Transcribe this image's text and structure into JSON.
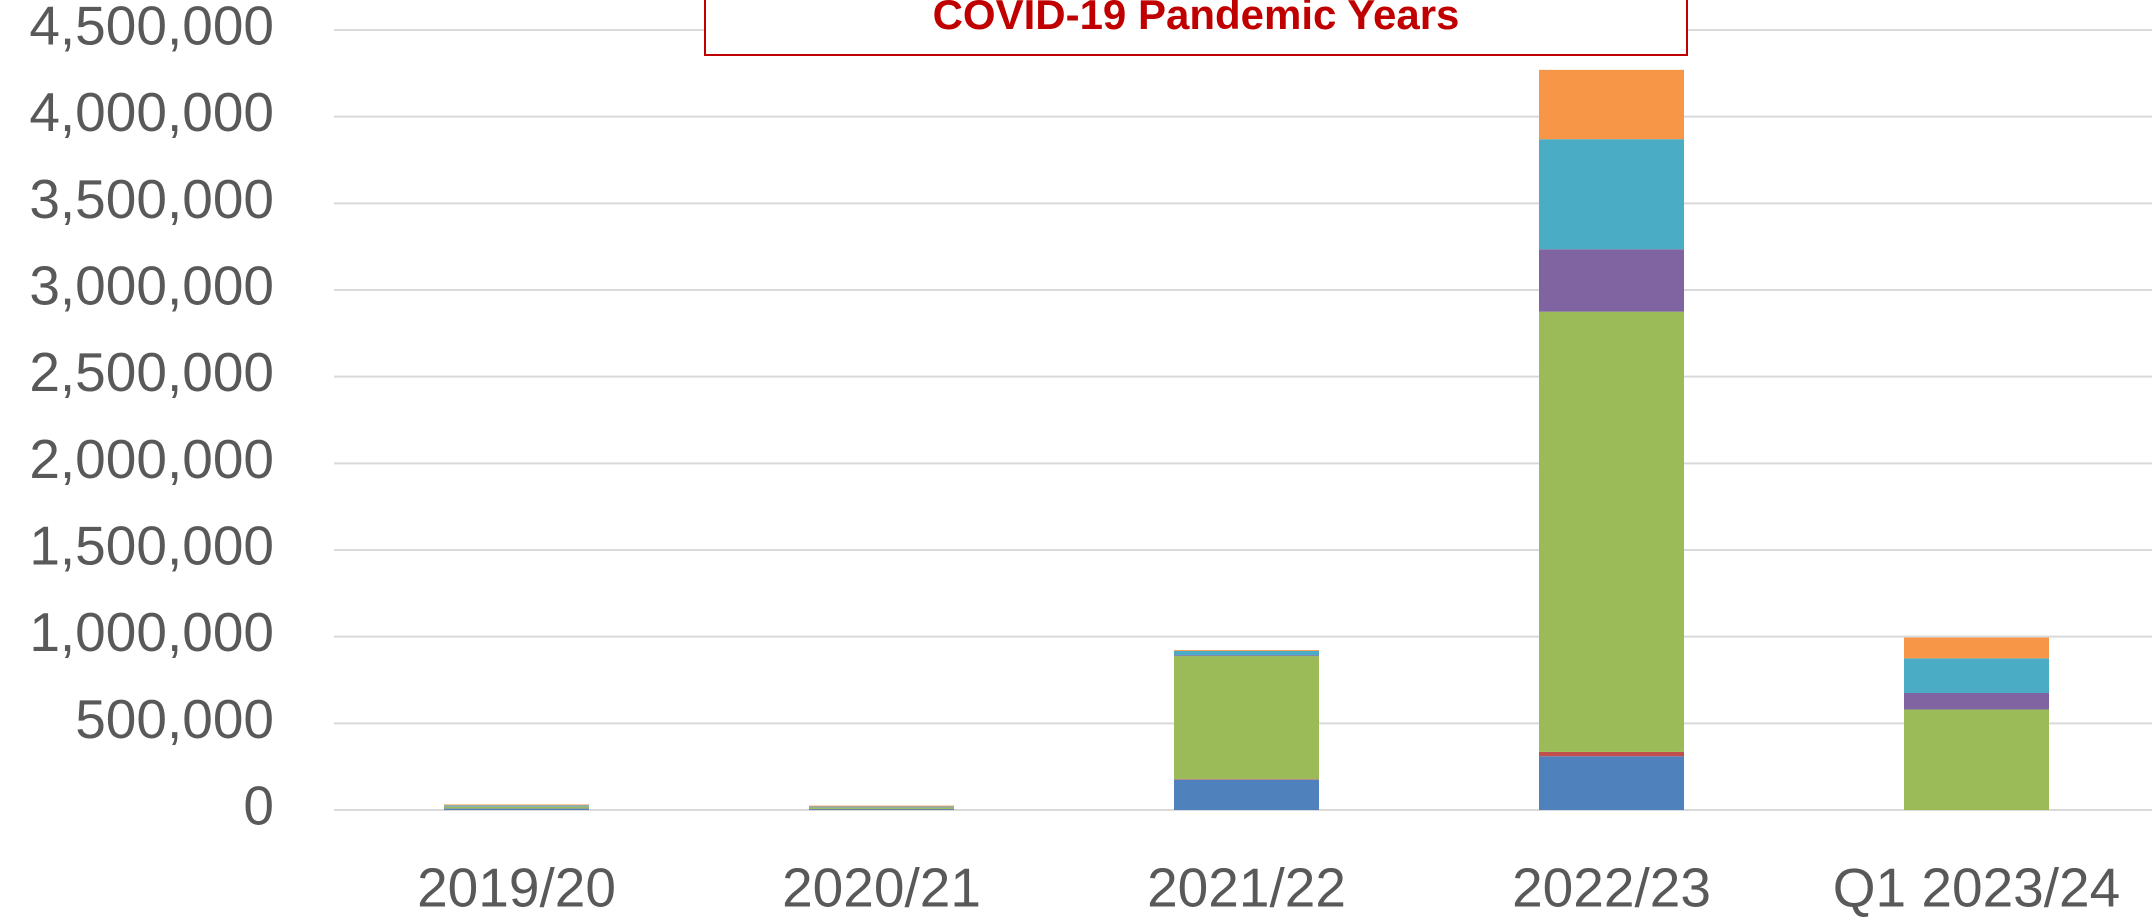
{
  "chart_data": {
    "type": "stacked-bar",
    "annotation": "COVID-19 Pandemic Years",
    "categories": [
      "2019/20",
      "2020/21",
      "2021/22",
      "2022/23",
      "Q1 2023/24"
    ],
    "series": [
      {
        "color": "#4f81bd",
        "values": [
          8000,
          5000,
          175000,
          310000,
          0
        ]
      },
      {
        "color": "#c0504d",
        "values": [
          1000,
          1000,
          3000,
          25000,
          0
        ]
      },
      {
        "color": "#9bbb59",
        "values": [
          10000,
          8000,
          710000,
          2540000,
          580000
        ]
      },
      {
        "color": "#8064a2",
        "values": [
          2000,
          2000,
          5000,
          360000,
          95000
        ]
      },
      {
        "color": "#4bacc6",
        "values": [
          6000,
          4000,
          25000,
          635000,
          200000
        ]
      },
      {
        "color": "#f79646",
        "values": [
          5000,
          5000,
          5000,
          400000,
          120000
        ]
      }
    ],
    "ylim": [
      0,
      4500000
    ],
    "yticks": [
      0,
      {
        "value": 500000,
        "label": "500,000"
      },
      {
        "value": 1000000,
        "label": "1,000,000"
      },
      {
        "value": 1500000,
        "label": "1,500,000"
      },
      {
        "value": 2000000,
        "label": "2,000,000"
      },
      {
        "value": 2500000,
        "label": "2,500,000"
      },
      {
        "value": 3000000,
        "label": "3,000,000"
      },
      {
        "value": 3500000,
        "label": "3,500,000"
      },
      {
        "value": 4000000,
        "label": "4,000,000"
      },
      {
        "value": 4500000,
        "label": "4,500,000"
      }
    ],
    "grid": true
  }
}
